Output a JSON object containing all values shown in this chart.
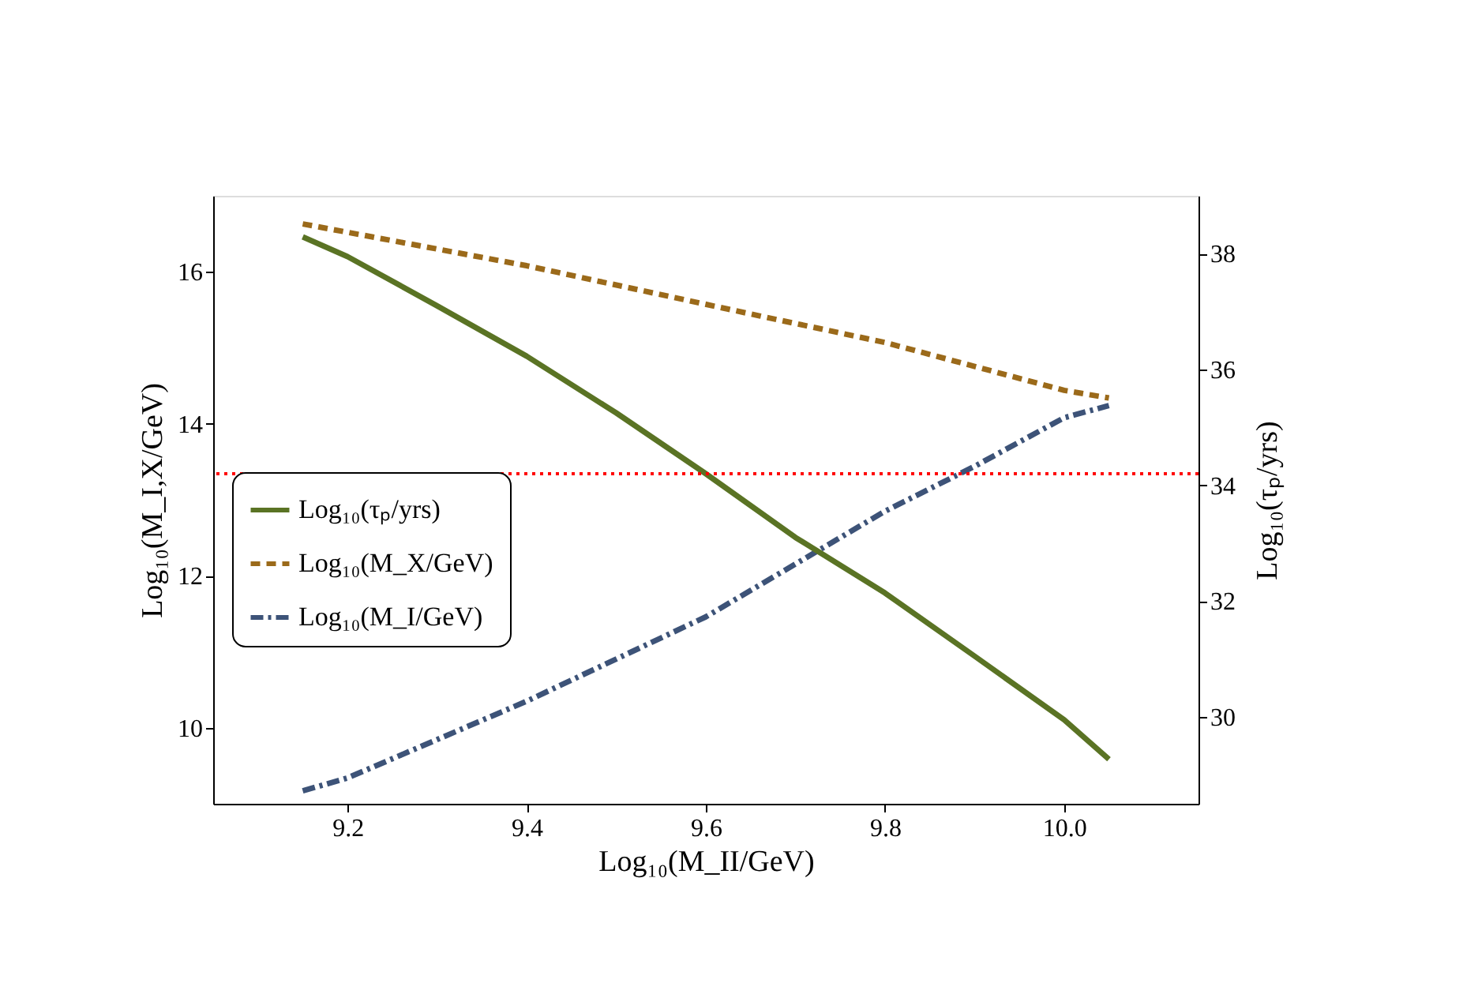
{
  "chart_data": {
    "type": "line",
    "xlabel": "Log₁₀(M_II/GeV)",
    "ylabel": "Log₁₀(M_I,X/GeV)",
    "y2label": "Log₁₀(τₚ/yrs)",
    "xlim": [
      9.05,
      10.15
    ],
    "xticks": [
      9.2,
      9.4,
      9.6,
      9.8,
      {
        "value": 10.0,
        "label": "10.0"
      }
    ],
    "ylim": [
      9,
      17
    ],
    "yticks": [
      10,
      12,
      14,
      16
    ],
    "y2lim": [
      28.5,
      39
    ],
    "y2ticks": [
      30,
      32,
      34,
      36,
      38
    ],
    "grid": false,
    "legend": "left",
    "marker": "none",
    "series": [
      {
        "name": "Log₁₀(τₚ/yrs)",
        "color": "#5a7324",
        "axis": "y2",
        "line_style": "solid",
        "x": [
          9.15,
          9.2,
          9.3,
          9.4,
          9.5,
          9.6,
          9.7,
          9.8,
          9.9,
          10.0,
          10.05
        ],
        "values": [
          38.29,
          37.95,
          37.1,
          36.23,
          35.25,
          34.2,
          33.1,
          32.14,
          31.05,
          29.95,
          29.27
        ]
      },
      {
        "name": "Log₁₀(M_X/GeV)",
        "color": "#9b6a1a",
        "axis": "y",
        "line_style": "dashed",
        "x": [
          9.15,
          9.4,
          9.66,
          9.8,
          10.0,
          10.05
        ],
        "values": [
          16.63,
          16.08,
          15.42,
          15.07,
          14.44,
          14.34
        ]
      },
      {
        "name": "Log₁₀(M_I/GeV)",
        "color": "#3d5378",
        "axis": "y",
        "line_style": "dashdot",
        "x": [
          9.15,
          9.2,
          9.4,
          9.6,
          9.8,
          9.9,
          10.0,
          10.05
        ],
        "values": [
          9.17,
          9.34,
          10.35,
          11.46,
          12.85,
          13.44,
          14.08,
          14.24
        ]
      }
    ],
    "ref_lines": [
      {
        "axis": "y2",
        "value": 34.2,
        "color": "#ff0000",
        "line_style": "dotted"
      }
    ]
  }
}
